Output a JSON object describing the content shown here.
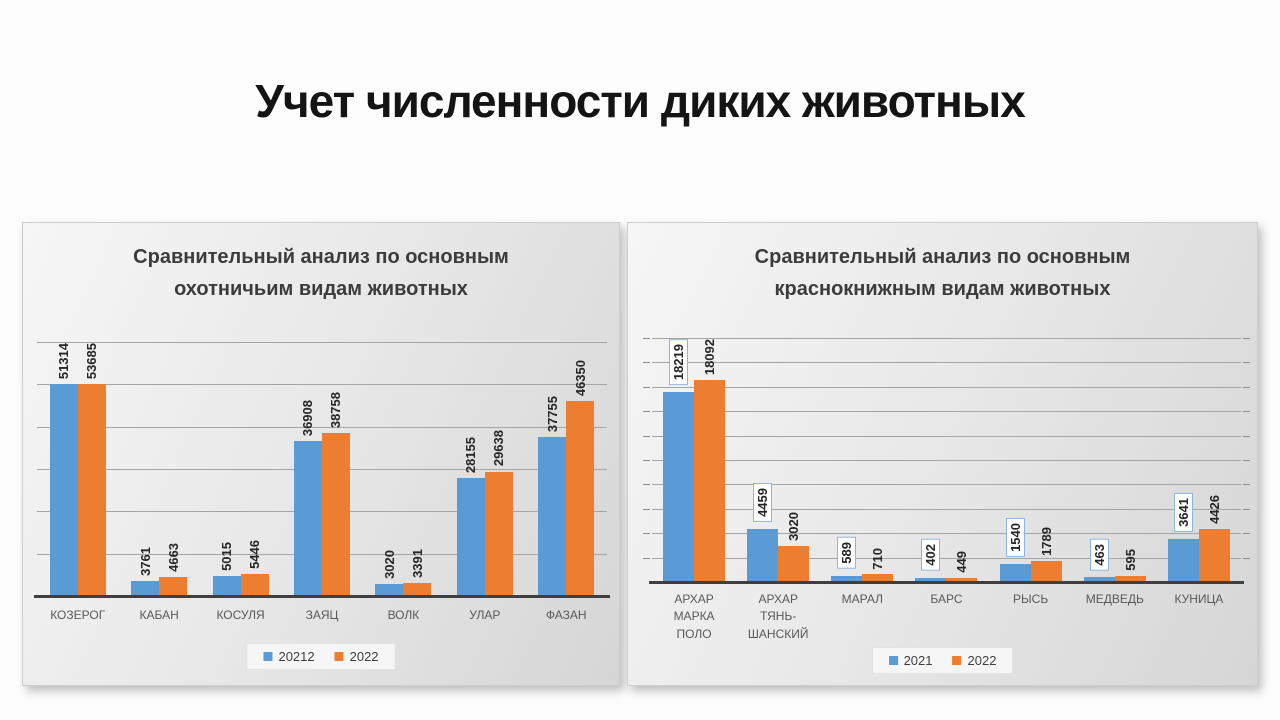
{
  "slide_title": "Учет численности диких животных",
  "chart_data": [
    {
      "type": "bar",
      "title": "Сравнительный анализ по основным охотничьим видам животных",
      "categories": [
        "КОЗЕРОГ",
        "КАБАН",
        "КОСУЛЯ",
        "ЗАЯЦ",
        "ВОЛК",
        "УЛАР",
        "ФАЗАН"
      ],
      "series": [
        {
          "name": "20212",
          "color": "#5B9BD5",
          "boxed_labels": false,
          "values": [
            51314,
            3761,
            5015,
            36908,
            3020,
            28155,
            37755
          ]
        },
        {
          "name": "2022",
          "color": "#ED7D31",
          "boxed_labels": false,
          "values": [
            53685,
            4663,
            5446,
            38758,
            3391,
            29638,
            46350
          ]
        }
      ],
      "ylim": [
        0,
        60000
      ],
      "gridline_step": 10000,
      "axis_ticks": false,
      "grid": true,
      "legend_position": "bottom",
      "data_labels": "rotated-vertical",
      "xlabel": "",
      "ylabel": ""
    },
    {
      "type": "bar",
      "title": "Сравнительный анализ по основным краснокнижным видам животных",
      "categories": [
        "АРХАР МАРКА ПОЛО",
        "АРХАР ТЯНЬ-ШАНСКИЙ",
        "МАРАЛ",
        "БАРС",
        "РЫСЬ",
        "МЕДВЕДЬ",
        "КУНИЦА"
      ],
      "series": [
        {
          "name": "2021",
          "color": "#5B9BD5",
          "boxed_labels": true,
          "values": [
            18219,
            4459,
            589,
            402,
            1540,
            463,
            3641
          ]
        },
        {
          "name": "2022",
          "color": "#ED7D31",
          "boxed_labels": false,
          "values": [
            18092,
            3020,
            710,
            449,
            1789,
            595,
            4426
          ]
        }
      ],
      "ylim": [
        0,
        20000
      ],
      "gridline_step": 2000,
      "axis_ticks": true,
      "grid": true,
      "legend_position": "bottom",
      "data_labels": "rotated-vertical",
      "xlabel": "",
      "ylabel": ""
    }
  ]
}
